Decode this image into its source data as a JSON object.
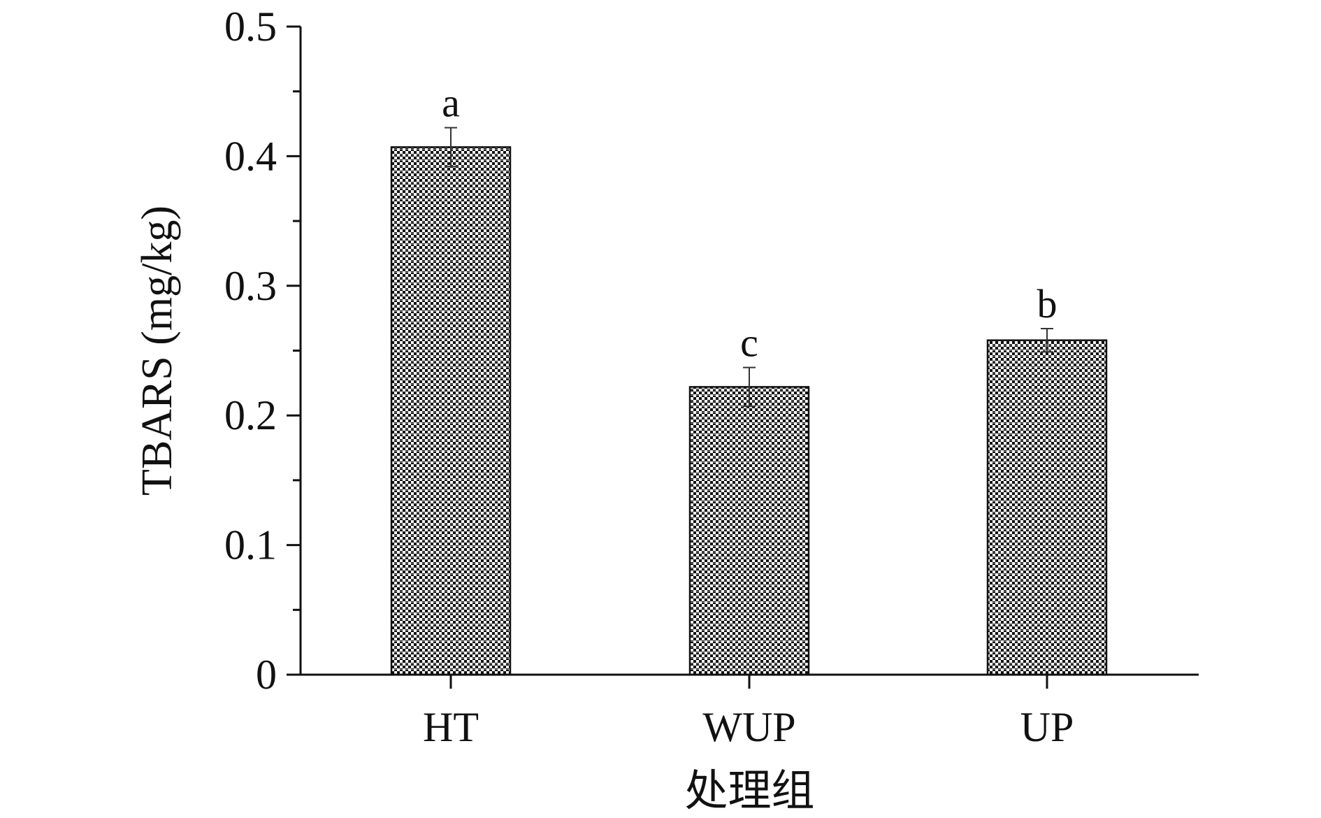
{
  "chart_data": {
    "type": "bar",
    "categories": [
      "HT",
      "WUP",
      "UP"
    ],
    "values": [
      0.407,
      0.222,
      0.258
    ],
    "errors": [
      0.015,
      0.015,
      0.009
    ],
    "significance": [
      "a",
      "c",
      "b"
    ],
    "xlabel": "处理组",
    "ylabel": "TBARS (mg/kg)",
    "ylim": [
      0,
      0.5
    ],
    "yticks": [
      0,
      0.1,
      0.2,
      0.3,
      0.4,
      0.5
    ],
    "ytick_labels": [
      "0",
      "0.1",
      "0.2",
      "0.3",
      "0.4",
      "0.5"
    ],
    "grid": false,
    "bar_fill": "checkered black-and-white pattern",
    "colors": {
      "axis": "#111111",
      "bar_dark": "#111111",
      "bar_light": "#ffffff"
    }
  }
}
